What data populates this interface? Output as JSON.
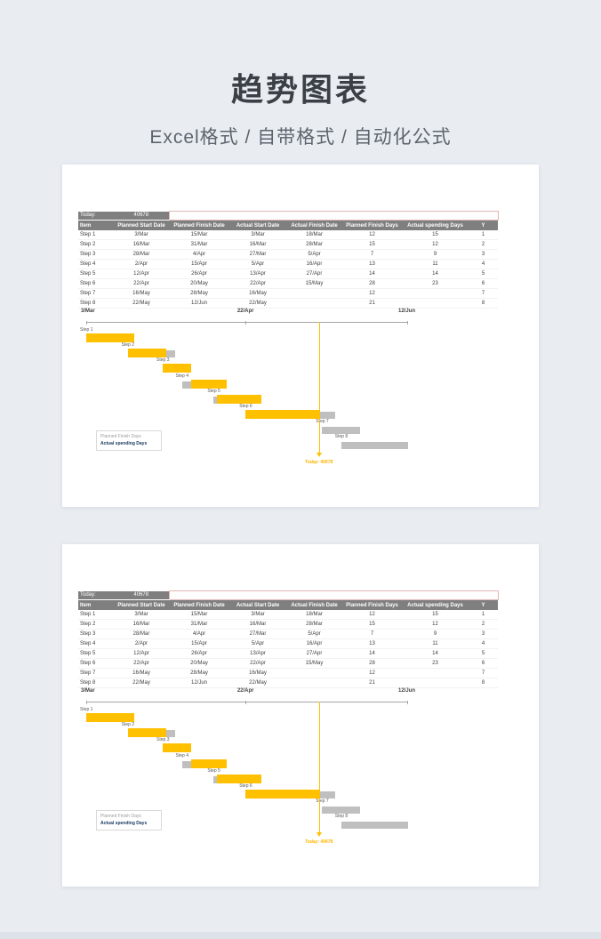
{
  "page": {
    "title": "趋势图表",
    "subtitle": "Excel格式 / 自带格式 / 自动化公式"
  },
  "panel": {
    "today_label": "Today:",
    "today_value": "40678",
    "table": {
      "columns": [
        "Item",
        "Planned Start Date",
        "Planned Finish Date",
        "Actual Start Date",
        "Actual Finish Date",
        "Planned Finish Days",
        "Actual spending Days",
        "Y"
      ],
      "rows": [
        [
          "Step 1",
          "3/Mar",
          "15/Mar",
          "3/Mar",
          "18/Mar",
          "12",
          "15",
          "1"
        ],
        [
          "Step 2",
          "16/Mar",
          "31/Mar",
          "16/Mar",
          "28/Mar",
          "15",
          "12",
          "2"
        ],
        [
          "Step 3",
          "28/Mar",
          "4/Apr",
          "27/Mar",
          "5/Apr",
          "7",
          "9",
          "3"
        ],
        [
          "Step 4",
          "2/Apr",
          "15/Apr",
          "5/Apr",
          "16/Apr",
          "13",
          "11",
          "4"
        ],
        [
          "Step 5",
          "12/Apr",
          "26/Apr",
          "13/Apr",
          "27/Apr",
          "14",
          "14",
          "5"
        ],
        [
          "Step 6",
          "22/Apr",
          "20/May",
          "22/Apr",
          "15/May",
          "28",
          "23",
          "6"
        ],
        [
          "Step 7",
          "16/May",
          "28/May",
          "16/May",
          "",
          "12",
          "",
          "7"
        ],
        [
          "Step 8",
          "22/May",
          "12/Jun",
          "22/May",
          "",
          "21",
          "",
          "8"
        ]
      ]
    },
    "chart_data": {
      "type": "gantt-bar",
      "title": "",
      "axis": {
        "start_label": "3/Mar",
        "mid_label": "22/Apr",
        "end_label": "12/Jun",
        "total_days": 101
      },
      "today": {
        "day": 73,
        "label": "Today: 40678"
      },
      "colors": {
        "planned_bar": "#bfbfbf",
        "actual_bar": "#ffc000",
        "today_line": "#ffc000",
        "header_fill": "#7f7f7f"
      },
      "legend": [
        {
          "label": "Planned Finish Days",
          "text_color": "#9b9b9b",
          "bar_color": "#bfbfbf"
        },
        {
          "label": "Actual spending Days",
          "text_color": "#17375e",
          "bar_color": "#ffc000"
        }
      ],
      "bars": [
        {
          "name": "Step 1",
          "planned_start_day": 0,
          "planned_days": 12,
          "actual_start_day": 0,
          "actual_days": 15
        },
        {
          "name": "Step 2",
          "planned_start_day": 13,
          "planned_days": 15,
          "actual_start_day": 13,
          "actual_days": 12
        },
        {
          "name": "Step 3",
          "planned_start_day": 25,
          "planned_days": 7,
          "actual_start_day": 24,
          "actual_days": 9
        },
        {
          "name": "Step 4",
          "planned_start_day": 30,
          "planned_days": 13,
          "actual_start_day": 33,
          "actual_days": 11
        },
        {
          "name": "Step 5",
          "planned_start_day": 40,
          "planned_days": 14,
          "actual_start_day": 41,
          "actual_days": 14
        },
        {
          "name": "Step 6",
          "planned_start_day": 50,
          "planned_days": 28,
          "actual_start_day": 50,
          "actual_days": 23
        },
        {
          "name": "Step 7",
          "planned_start_day": 74,
          "planned_days": 12,
          "actual_start_day": 74,
          "actual_days": null
        },
        {
          "name": "Step 8",
          "planned_start_day": 80,
          "planned_days": 21,
          "actual_start_day": 80,
          "actual_days": null
        }
      ]
    }
  }
}
